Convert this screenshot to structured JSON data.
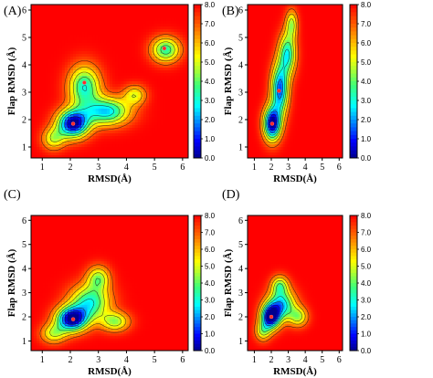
{
  "chart_data": [
    {
      "type": "heatmap",
      "panel": "(A)",
      "xlabel": "RMSD(Å)",
      "ylabel": "Flap RMSD (Å)",
      "xlim": [
        0.6,
        6.2
      ],
      "ylim": [
        0.6,
        6.2
      ],
      "x_ticks": [
        1,
        2,
        3,
        4,
        5,
        6
      ],
      "y_ticks": [
        1,
        2,
        3,
        4,
        5,
        6
      ],
      "colorbar": {
        "min": 0.0,
        "max": 8.0,
        "ticks": [
          "0.0",
          "1.0",
          "2.0",
          "3.0",
          "4.0",
          "5.0",
          "6.0",
          "7.0",
          "8.0"
        ]
      },
      "basins": [
        {
          "x": 2.1,
          "y": 1.85,
          "depth": 8.0,
          "sx": 0.55,
          "sy": 0.5
        },
        {
          "x": 2.5,
          "y": 3.2,
          "depth": 5.0,
          "sx": 0.55,
          "sy": 0.75
        },
        {
          "x": 1.4,
          "y": 1.3,
          "depth": 3.0,
          "sx": 0.4,
          "sy": 0.4
        },
        {
          "x": 3.3,
          "y": 2.3,
          "depth": 5.5,
          "sx": 0.8,
          "sy": 0.5
        },
        {
          "x": 4.3,
          "y": 2.9,
          "depth": 2.8,
          "sx": 0.4,
          "sy": 0.35
        },
        {
          "x": 5.4,
          "y": 4.55,
          "depth": 4.6,
          "sx": 0.5,
          "sy": 0.45
        }
      ],
      "minima": [
        {
          "x": 2.1,
          "y": 1.85
        },
        {
          "x": 2.5,
          "y": 3.35
        },
        {
          "x": 5.35,
          "y": 4.6
        }
      ]
    },
    {
      "type": "heatmap",
      "panel": "(B)",
      "xlabel": "RMSD(Å)",
      "ylabel": "Flap RMSD (Å)",
      "xlim": [
        0.6,
        6.2
      ],
      "ylim": [
        0.6,
        6.2
      ],
      "x_ticks": [
        1,
        2,
        3,
        4,
        5,
        6
      ],
      "y_ticks": [
        1,
        2,
        3,
        4,
        5,
        6
      ],
      "colorbar": {
        "min": 0.0,
        "max": 8.0,
        "ticks": [
          "0.0",
          "1.0",
          "2.0",
          "3.0",
          "4.0",
          "5.0",
          "6.0",
          "7.0",
          "8.0"
        ]
      },
      "basins": [
        {
          "x": 2.05,
          "y": 1.85,
          "depth": 8.0,
          "sx": 0.5,
          "sy": 0.6
        },
        {
          "x": 2.5,
          "y": 3.1,
          "depth": 6.5,
          "sx": 0.5,
          "sy": 0.9
        },
        {
          "x": 2.95,
          "y": 4.4,
          "depth": 5.0,
          "sx": 0.5,
          "sy": 0.75
        },
        {
          "x": 3.2,
          "y": 5.5,
          "depth": 3.2,
          "sx": 0.35,
          "sy": 0.5
        }
      ],
      "minima": [
        {
          "x": 2.05,
          "y": 1.85
        },
        {
          "x": 2.45,
          "y": 3.05
        }
      ]
    },
    {
      "type": "heatmap",
      "panel": "(C)",
      "xlabel": "RMSD(Å)",
      "ylabel": "Flap RMSD (Å)",
      "xlim": [
        0.6,
        6.2
      ],
      "ylim": [
        0.6,
        6.2
      ],
      "x_ticks": [
        1,
        2,
        3,
        4,
        5,
        6
      ],
      "y_ticks": [
        1,
        2,
        3,
        4,
        5,
        6
      ],
      "colorbar": {
        "min": 0.0,
        "max": 8.0,
        "ticks": [
          "0.0",
          "1.0",
          "2.0",
          "3.0",
          "4.0",
          "5.0",
          "6.0",
          "7.0",
          "8.0"
        ]
      },
      "basins": [
        {
          "x": 2.05,
          "y": 1.9,
          "depth": 8.0,
          "sx": 0.55,
          "sy": 0.5
        },
        {
          "x": 2.7,
          "y": 2.6,
          "depth": 5.0,
          "sx": 0.7,
          "sy": 0.7
        },
        {
          "x": 3.0,
          "y": 3.6,
          "depth": 3.5,
          "sx": 0.4,
          "sy": 0.5
        },
        {
          "x": 3.6,
          "y": 1.8,
          "depth": 3.5,
          "sx": 0.5,
          "sy": 0.4
        },
        {
          "x": 1.4,
          "y": 1.3,
          "depth": 3.0,
          "sx": 0.45,
          "sy": 0.4
        }
      ],
      "minima": [
        {
          "x": 2.1,
          "y": 1.9
        }
      ]
    },
    {
      "type": "heatmap",
      "panel": "(D)",
      "xlabel": "RMSD(Å)",
      "ylabel": "Flap RMSD (Å)",
      "xlim": [
        0.6,
        6.2
      ],
      "ylim": [
        0.6,
        6.2
      ],
      "x_ticks": [
        1,
        2,
        3,
        4,
        5,
        6
      ],
      "y_ticks": [
        1,
        2,
        3,
        4,
        5,
        6
      ],
      "colorbar": {
        "min": 0.0,
        "max": 8.0,
        "ticks": [
          "0.0",
          "1.0",
          "2.0",
          "3.0",
          "4.0",
          "5.0",
          "6.0",
          "7.0",
          "8.0"
        ]
      },
      "basins": [
        {
          "x": 1.95,
          "y": 2.0,
          "depth": 8.0,
          "sx": 0.55,
          "sy": 0.5
        },
        {
          "x": 2.6,
          "y": 2.5,
          "depth": 5.5,
          "sx": 0.8,
          "sy": 0.6
        },
        {
          "x": 2.5,
          "y": 3.3,
          "depth": 3.5,
          "sx": 0.5,
          "sy": 0.4
        },
        {
          "x": 3.6,
          "y": 2.0,
          "depth": 3.2,
          "sx": 0.55,
          "sy": 0.4
        },
        {
          "x": 1.5,
          "y": 1.4,
          "depth": 3.0,
          "sx": 0.45,
          "sy": 0.4
        }
      ],
      "minima": [
        {
          "x": 2.0,
          "y": 2.0
        }
      ]
    }
  ]
}
